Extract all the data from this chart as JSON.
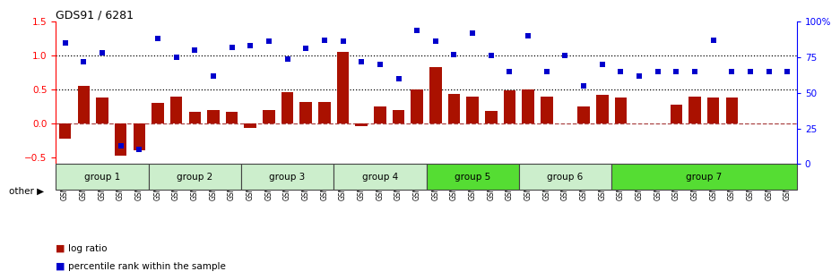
{
  "title": "GDS91 / 6281",
  "gsm_labels": [
    "GSM1555",
    "GSM1556",
    "GSM1557",
    "GSM1558",
    "GSM1564",
    "GSM1550",
    "GSM1565",
    "GSM1566",
    "GSM1567",
    "GSM1568",
    "GSM1574",
    "GSM1575",
    "GSM1576",
    "GSM1577",
    "GSM1578",
    "GSM1584",
    "GSM1585",
    "GSM1586",
    "GSM1587",
    "GSM1588",
    "GSM1594",
    "GSM1595",
    "GSM1596",
    "GSM1597",
    "GSM1598",
    "GSM1604",
    "GSM1605",
    "GSM1606",
    "GSM1607",
    "GSM1608",
    "GSM1614",
    "GSM1615",
    "GSM1616",
    "GSM1617",
    "GSM1618",
    "GSM1624",
    "GSM1625",
    "GSM1626",
    "GSM1627",
    "GSM1628"
  ],
  "log_ratio": [
    -0.22,
    0.55,
    0.38,
    -0.47,
    -0.4,
    0.3,
    0.4,
    0.17,
    0.19,
    0.17,
    -0.07,
    0.2,
    0.46,
    0.32,
    0.32,
    1.05,
    -0.04,
    0.25,
    0.2,
    0.5,
    0.83,
    0.44,
    0.4,
    0.18,
    0.48,
    0.5,
    0.39,
    0.0,
    0.25,
    0.42,
    0.38,
    0.0,
    0.0,
    0.27,
    0.39,
    0.38,
    0.38,
    0.0,
    0.0,
    0.0
  ],
  "pct_values": [
    85,
    72,
    78,
    13,
    10,
    88,
    75,
    80,
    62,
    82,
    83,
    86,
    74,
    81,
    87,
    86,
    72,
    70,
    60,
    94,
    86,
    77,
    92,
    76,
    65,
    90,
    65,
    76,
    55,
    70,
    65,
    62,
    65,
    65,
    65,
    87,
    65,
    65,
    65,
    65
  ],
  "group_spans": [
    {
      "name": "group 1",
      "start": 0,
      "end": 4,
      "color": "#cceecc"
    },
    {
      "name": "group 2",
      "start": 5,
      "end": 9,
      "color": "#cceecc"
    },
    {
      "name": "group 3",
      "start": 10,
      "end": 14,
      "color": "#cceecc"
    },
    {
      "name": "group 4",
      "start": 15,
      "end": 19,
      "color": "#cceecc"
    },
    {
      "name": "group 5",
      "start": 20,
      "end": 24,
      "color": "#55dd33"
    },
    {
      "name": "group 6",
      "start": 25,
      "end": 29,
      "color": "#cceecc"
    },
    {
      "name": "group 7",
      "start": 30,
      "end": 39,
      "color": "#55dd33"
    }
  ],
  "bar_color": "#aa1100",
  "dot_color": "#0000cc",
  "ylim_left": [
    -0.6,
    1.5
  ],
  "ylim_right": [
    0,
    100
  ],
  "yticks_left": [
    -0.5,
    0.0,
    0.5,
    1.0,
    1.5
  ],
  "yticks_right": [
    0,
    25,
    50,
    75,
    100
  ],
  "background_color": "#ffffff"
}
